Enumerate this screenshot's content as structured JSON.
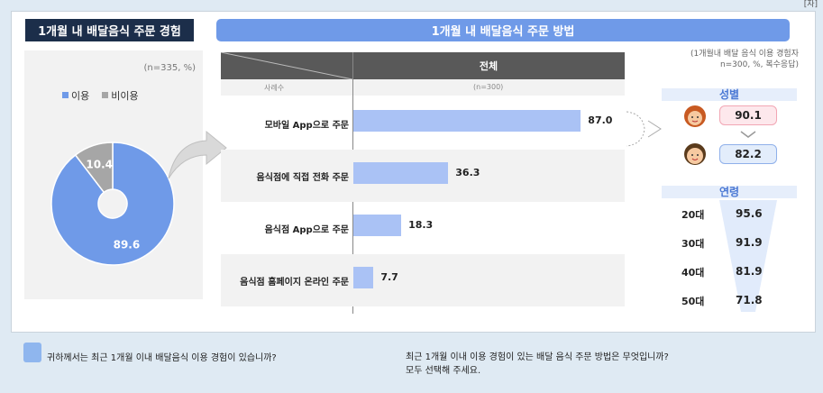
{
  "corner_label": "[자]",
  "left": {
    "title": "1개월 내 배달음식 주문 경험",
    "note": "(n=335, %)",
    "legend": [
      {
        "label": "이용",
        "color": "#6f9ae8"
      },
      {
        "label": "비이용",
        "color": "#a6a6a6"
      }
    ]
  },
  "right_title": "1개월 내 배달음식 주문 방법",
  "table": {
    "header": "전체",
    "sample_label": "사례수",
    "sample_value": "(n=300)"
  },
  "right_panel": {
    "note_line1": "(1개월내 배달 음식 이용 경험자",
    "note_line2": "n=300, %, 복수응답)",
    "gender_title": "성별",
    "gender": [
      {
        "icon": "female-face-icon",
        "value": "90.1"
      },
      {
        "icon": "male-face-icon",
        "value": "82.2"
      }
    ],
    "age_title": "연령",
    "ages": [
      {
        "label": "20대",
        "value": "95.6"
      },
      {
        "label": "30대",
        "value": "91.9"
      },
      {
        "label": "40대",
        "value": "81.9"
      },
      {
        "label": "50대",
        "value": "71.8"
      }
    ]
  },
  "questions": {
    "q1": "귀하께서는 최근 1개월 이내 배달음식 이용 경험이 있습니까?",
    "q2_line1": "최근 1개월 이내 이용 경험이 있는 배달 음식 주문 방법은 무엇입니까?",
    "q2_line2": "모두 선택해 주세요."
  },
  "chart_data": [
    {
      "type": "pie",
      "labels": [
        "이용",
        "비이용"
      ],
      "values": [
        89.6,
        10.4
      ],
      "colors": [
        "#6f9ae8",
        "#a6a6a6"
      ],
      "title": "1개월 내 배달음식 주문 경험"
    },
    {
      "type": "bar",
      "title": "1개월 내 배달음식 주문 방법",
      "categories": [
        "모바일 App으로 주문",
        "음식점에 직접 전화 주문",
        "음식점 App으로 주문",
        "음식점 홈페이지 온라인 주문"
      ],
      "values": [
        87.0,
        36.3,
        18.3,
        7.7
      ],
      "value_labels": [
        "87.0",
        "36.3",
        "18.3",
        "7.7"
      ],
      "xlim": [
        0,
        100
      ],
      "color": "#aac2f5"
    }
  ]
}
